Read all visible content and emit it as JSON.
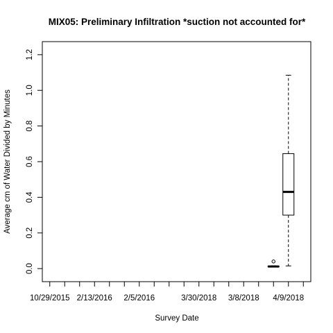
{
  "chart_data": {
    "type": "boxplot",
    "title": "MIX05: Preliminary Infiltration *suction not accounted for*",
    "xlabel": "Survey Date",
    "ylabel": "Average cm of Water Divided by Minutes",
    "ylim": [
      -0.05,
      1.25
    ],
    "yticks": [
      0.0,
      0.2,
      0.4,
      0.6,
      0.8,
      1.0,
      1.2
    ],
    "ytick_labels": [
      "0.0",
      "0.2",
      "0.4",
      "0.6",
      "0.8",
      "1.0",
      "1.2"
    ],
    "n_categories": 18,
    "x_tick_labels": [
      {
        "index": 1,
        "label": "10/29/2015"
      },
      {
        "index": 4,
        "label": "2/13/2016"
      },
      {
        "index": 7,
        "label": "2/5/2016"
      },
      {
        "index": 11,
        "label": "3/30/2018"
      },
      {
        "index": 14,
        "label": "3/8/2018"
      },
      {
        "index": 17,
        "label": "4/9/2018"
      }
    ],
    "boxes": [
      {
        "index": 16,
        "lower_whisker": 0.01,
        "q1": 0.01,
        "median": 0.012,
        "q3": 0.014,
        "upper_whisker": 0.016,
        "outliers": [
          0.04
        ]
      },
      {
        "index": 17,
        "lower_whisker": 0.015,
        "q1": 0.3,
        "median": 0.43,
        "q3": 0.645,
        "upper_whisker": 1.085,
        "outliers": []
      }
    ]
  }
}
